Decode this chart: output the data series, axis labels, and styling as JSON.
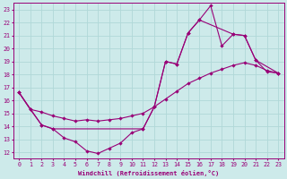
{
  "xlabel": "Windchill (Refroidissement éolien,°C)",
  "xlim": [
    -0.5,
    23.5
  ],
  "ylim": [
    11.5,
    23.5
  ],
  "xticks": [
    0,
    1,
    2,
    3,
    4,
    5,
    6,
    7,
    8,
    9,
    10,
    11,
    12,
    13,
    14,
    15,
    16,
    17,
    18,
    19,
    20,
    21,
    22,
    23
  ],
  "yticks": [
    12,
    13,
    14,
    15,
    16,
    17,
    18,
    19,
    20,
    21,
    22,
    23
  ],
  "bg_color": "#cdeaea",
  "grid_color": "#b0d8d8",
  "line_color": "#990077",
  "curve1_x": [
    0,
    1,
    2,
    3,
    4,
    5,
    6,
    7,
    8,
    9,
    10,
    11,
    12,
    13,
    14,
    15,
    16,
    17,
    18,
    19,
    20,
    21,
    22,
    23
  ],
  "curve1_y": [
    16.6,
    15.3,
    14.1,
    13.8,
    13.1,
    12.8,
    12.1,
    11.9,
    12.3,
    12.7,
    13.5,
    13.8,
    15.5,
    19.0,
    18.8,
    21.2,
    22.2,
    23.3,
    20.2,
    21.1,
    21.0,
    19.1,
    18.2,
    18.1
  ],
  "curve2_x": [
    0,
    2,
    3,
    11,
    12,
    13,
    14,
    15,
    16,
    19,
    20,
    21,
    23
  ],
  "curve2_y": [
    16.6,
    14.1,
    13.8,
    13.8,
    15.5,
    19.0,
    18.8,
    21.2,
    22.2,
    21.1,
    21.0,
    19.1,
    18.1
  ],
  "curve3_x": [
    0,
    1,
    2,
    3,
    4,
    5,
    6,
    7,
    8,
    9,
    10,
    11,
    12,
    13,
    14,
    15,
    16,
    17,
    18,
    19,
    20,
    21,
    22,
    23
  ],
  "curve3_y": [
    16.6,
    15.3,
    15.1,
    14.8,
    14.6,
    14.4,
    14.5,
    14.4,
    14.5,
    14.6,
    14.8,
    15.0,
    15.5,
    16.1,
    16.7,
    17.3,
    17.7,
    18.1,
    18.4,
    18.7,
    18.9,
    18.7,
    18.3,
    18.1
  ]
}
